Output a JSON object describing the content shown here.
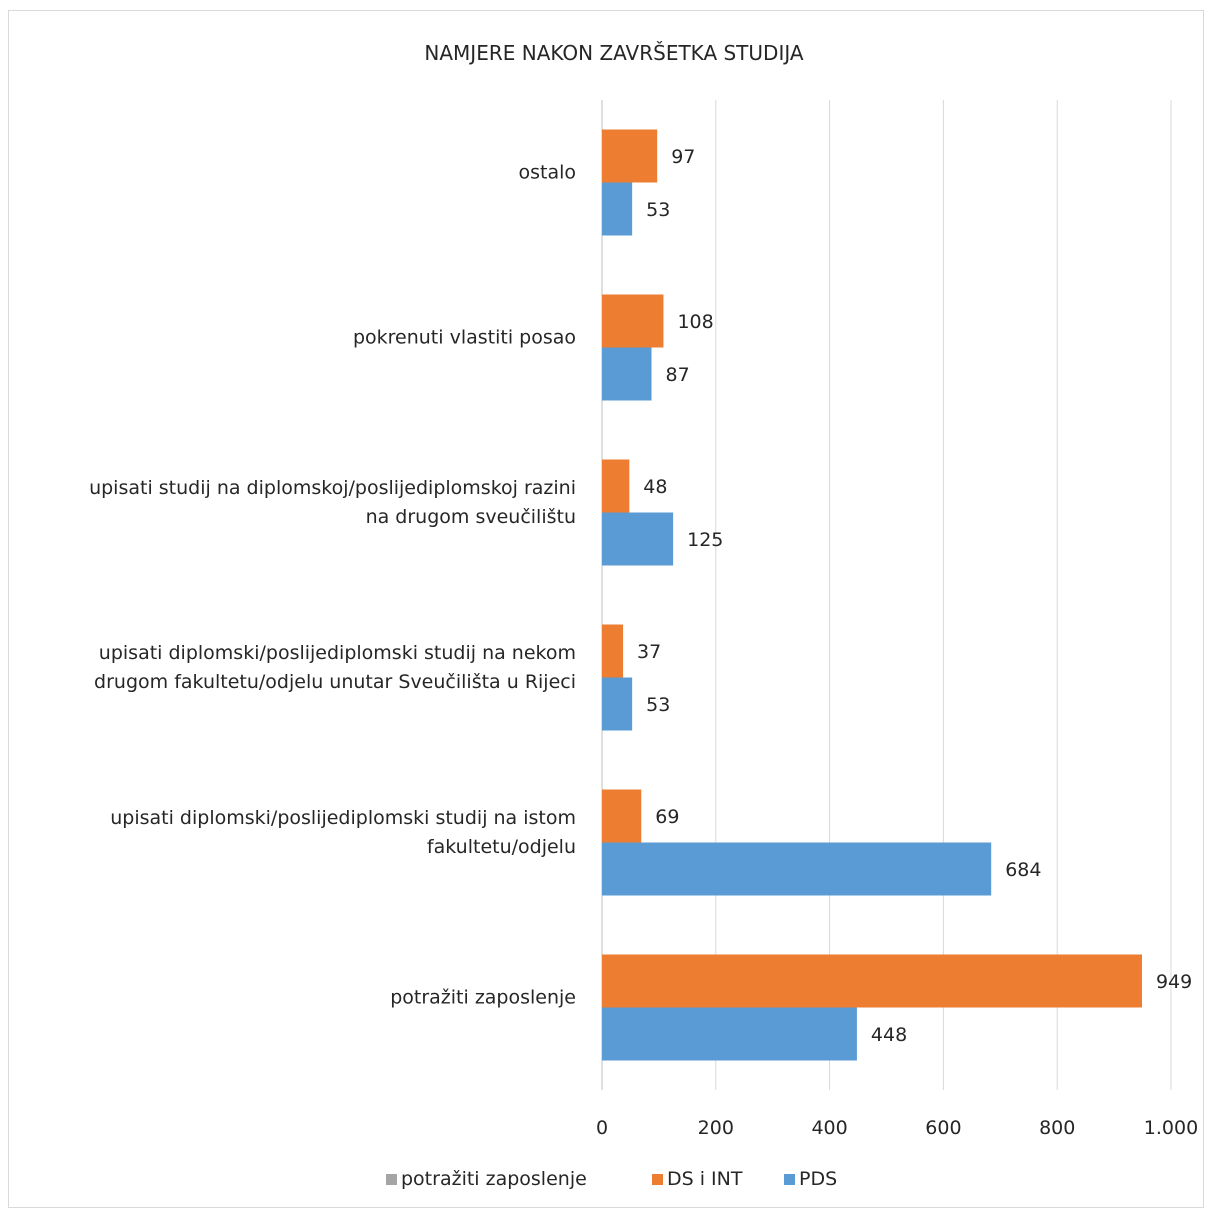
{
  "chart_data": {
    "type": "bar",
    "orientation": "horizontal",
    "title": "NAMJERE NAKON ZAVRŠETKA STUDIJA",
    "categories": [
      [
        "potražiti zaposlenje"
      ],
      [
        "upisati diplomski/poslijediplomski studij na istom",
        "fakultetu/odjelu"
      ],
      [
        "upisati diplomski/poslijediplomski studij na nekom",
        "drugom fakultetu/odjelu unutar Sveučilišta u Rijeci"
      ],
      [
        "upisati studij na diplomskoj/poslijediplomskoj razini",
        "na drugom sveučilištu"
      ],
      [
        "pokrenuti vlastiti posao"
      ],
      [
        "ostalo"
      ]
    ],
    "series": [
      {
        "name": "potražiti zaposlenje",
        "color": "#a5a5a5",
        "values": [
          0,
          0,
          0,
          0,
          0,
          0
        ],
        "data_labels": false
      },
      {
        "name": "DS i INT",
        "color": "#ed7d31",
        "values": [
          949,
          69,
          37,
          48,
          108,
          97
        ],
        "data_labels": true
      },
      {
        "name": "PDS",
        "color": "#5b9bd5",
        "values": [
          448,
          684,
          53,
          125,
          87,
          53
        ],
        "data_labels": true
      }
    ],
    "xlim": [
      0,
      1000
    ],
    "xticks": [
      0,
      200,
      400,
      600,
      800,
      1000
    ],
    "xtick_labels": [
      "0",
      "200",
      "400",
      "600",
      "800",
      "1.000"
    ],
    "grid": "vertical",
    "legend_position": "bottom",
    "gridline_color": "#d9d9d9"
  }
}
